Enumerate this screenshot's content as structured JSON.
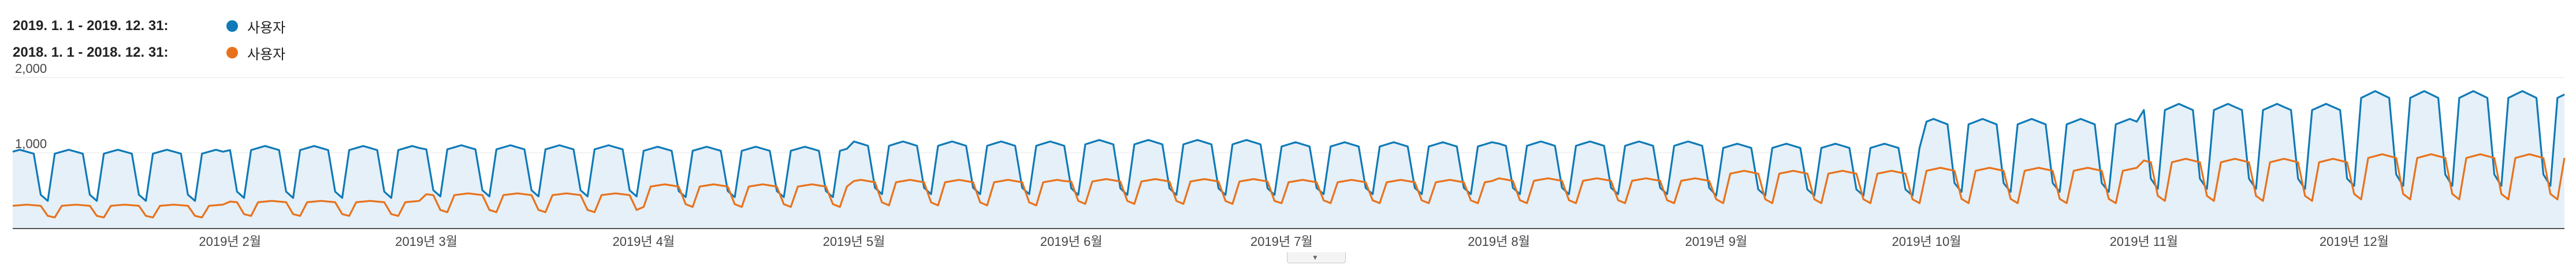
{
  "legend": {
    "items": [
      {
        "range": "2019. 1. 1 - 2019. 12. 31:",
        "name": "사용자",
        "color": "#0f7ab7"
      },
      {
        "range": "2018. 1. 1 - 2018. 12. 31:",
        "name": "사용자",
        "color": "#e8721c"
      }
    ]
  },
  "chart_data": {
    "type": "area",
    "ylim": [
      0,
      2000
    ],
    "y_ticks": [
      {
        "value": 2000,
        "label": "2,000"
      },
      {
        "value": 1000,
        "label": "1,000"
      }
    ],
    "x_ticks": [
      {
        "day": 31,
        "label": "2019년 2월"
      },
      {
        "day": 59,
        "label": "2019년 3월"
      },
      {
        "day": 90,
        "label": "2019년 4월"
      },
      {
        "day": 120,
        "label": "2019년 5월"
      },
      {
        "day": 151,
        "label": "2019년 6월"
      },
      {
        "day": 181,
        "label": "2019년 7월"
      },
      {
        "day": 212,
        "label": "2019년 8월"
      },
      {
        "day": 243,
        "label": "2019년 9월"
      },
      {
        "day": 273,
        "label": "2019년 10월"
      },
      {
        "day": 304,
        "label": "2019년 11월"
      },
      {
        "day": 334,
        "label": "2019년 12월"
      }
    ],
    "series": [
      {
        "name": "사용자",
        "period": "2019. 1. 1 - 2019. 12. 31",
        "color": "#0f7ab7",
        "weekday_by_month": [
          1040,
          1090,
          1100,
          1080,
          1150,
          1170,
          1140,
          1150,
          1120,
          1450,
          1650,
          1820
        ],
        "weekend_by_month": [
          360,
          400,
          420,
          410,
          450,
          440,
          450,
          450,
          430,
          480,
          520,
          560
        ]
      },
      {
        "name": "사용자",
        "period": "2018. 1. 1 - 2018. 12. 31",
        "color": "#e8721c",
        "weekday_by_month": [
          310,
          360,
          460,
          580,
          640,
          650,
          640,
          660,
          760,
          800,
          920,
          980
        ],
        "weekend_by_month": [
          140,
          160,
          210,
          280,
          300,
          320,
          330,
          330,
          330,
          330,
          360,
          380
        ]
      }
    ]
  }
}
